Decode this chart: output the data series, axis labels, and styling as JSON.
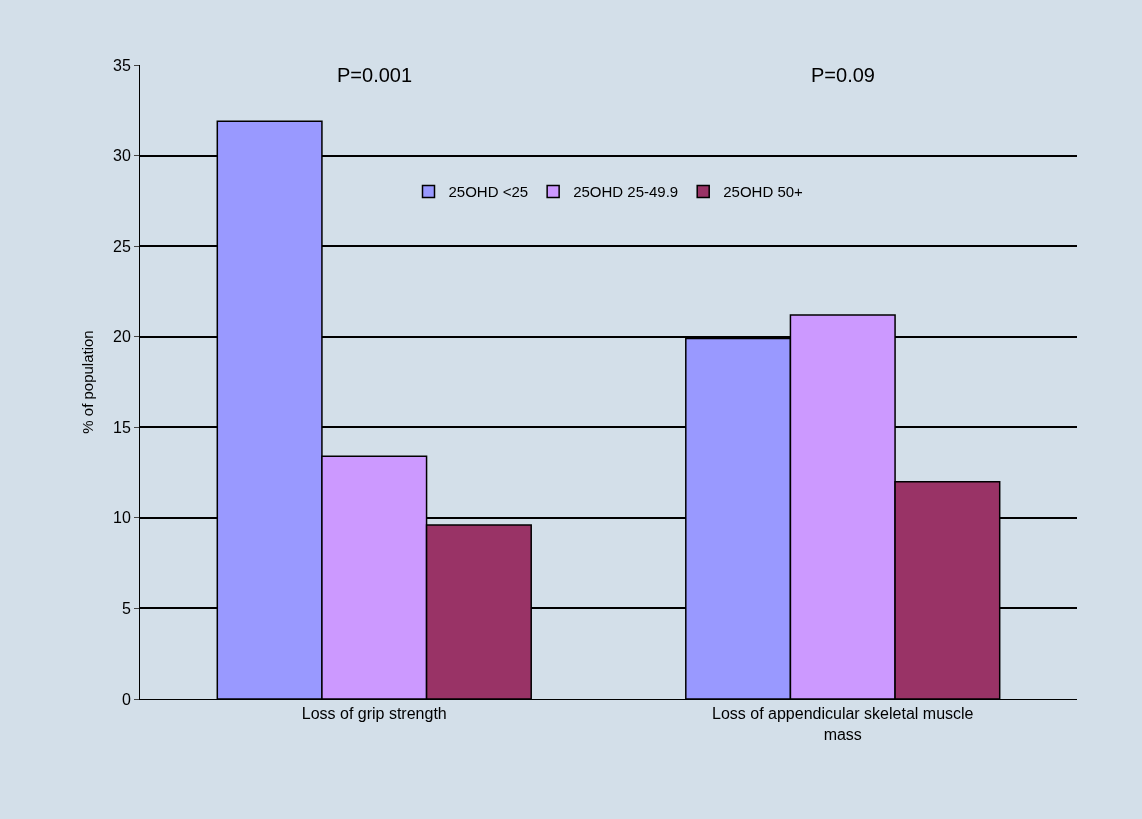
{
  "chart_data": {
    "type": "bar",
    "ylabel": "% of population",
    "categories": [
      "Loss of grip strength",
      "Loss of appendicular skeletal muscle mass"
    ],
    "series": [
      {
        "name": "25OHD <25",
        "color": "#9999ff",
        "values": [
          31.9,
          19.9
        ]
      },
      {
        "name": "25OHD 25-49.9",
        "color": "#cc99ff",
        "values": [
          13.4,
          21.2
        ]
      },
      {
        "name": "25OHD 50+",
        "color": "#993366",
        "values": [
          9.6,
          12.0
        ]
      }
    ],
    "ylim": [
      0,
      35
    ],
    "yticks": [
      0,
      5,
      10,
      15,
      20,
      25,
      30,
      35
    ],
    "grid": "y",
    "legend": "top",
    "annotations": [
      "P=0.001",
      "P=0.09"
    ]
  }
}
